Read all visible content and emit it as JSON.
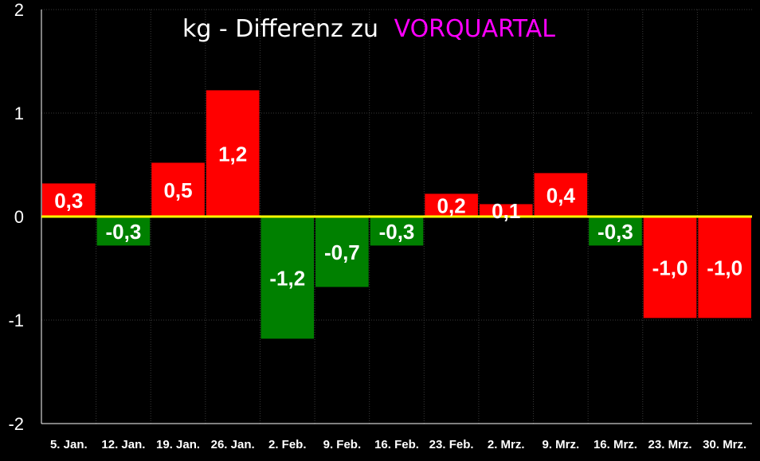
{
  "chart_data": {
    "type": "bar",
    "title": "kg - Differenz zu",
    "title_highlight": "VORQUARTAL",
    "categories": [
      "5. Jan.",
      "12. Jan.",
      "19. Jan.",
      "26. Jan.",
      "2. Feb.",
      "9. Feb.",
      "16. Feb.",
      "23. Feb.",
      "2. Mrz.",
      "9. Mrz.",
      "16. Mrz.",
      "23. Mrz.",
      "30. Mrz."
    ],
    "values": [
      0.32,
      -0.28,
      0.52,
      1.22,
      -1.18,
      -0.68,
      -0.28,
      0.22,
      0.12,
      0.42,
      -0.28,
      -0.98,
      -0.98
    ],
    "data_labels": [
      "0,3",
      "-0,3",
      "0,5",
      "1,2",
      "-1,2",
      "-0,7",
      "-0,3",
      "0,2",
      "0,1",
      "0,4",
      "-0,3",
      "-1,0",
      "-1,0"
    ],
    "bar_colors": [
      "#ff0000",
      "#008000",
      "#ff0000",
      "#ff0000",
      "#008000",
      "#008000",
      "#008000",
      "#ff0000",
      "#ff0000",
      "#ff0000",
      "#008000",
      "#ff0000",
      "#ff0000"
    ],
    "ylim": [
      -2,
      2
    ],
    "y_ticks": [
      2,
      1,
      0,
      -1,
      -2
    ],
    "y_tick_labels": [
      "2",
      "1",
      "0",
      "-1",
      "-2"
    ],
    "xlabel": "",
    "ylabel": "",
    "grid": true,
    "legend": "none",
    "colors": {
      "background": "#000000",
      "grid": "#3a3a3a",
      "zero_line": "#ffff00",
      "title": "#ffffff",
      "title_highlight": "#ff00ff",
      "text": "#ffffff"
    }
  }
}
